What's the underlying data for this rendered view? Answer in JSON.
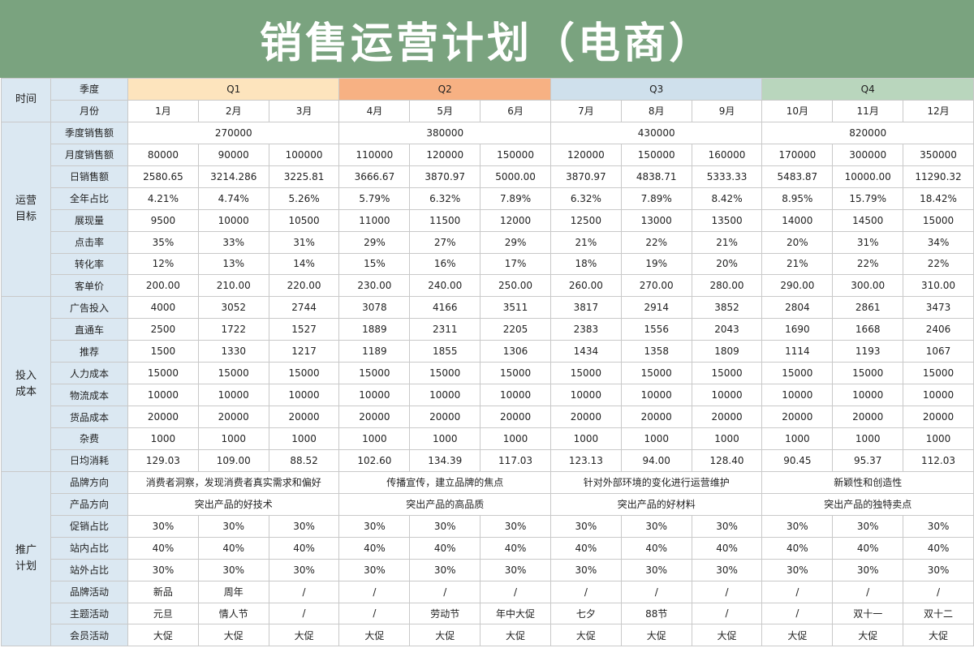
{
  "title": "销售运营计划（电商）",
  "colors": {
    "banner": "#7aa37f",
    "label_bg": "#dbe8f2",
    "q1": "#fde4bd",
    "q2": "#f7b183",
    "q3": "#cfe0ec",
    "q4": "#b9d6bd",
    "border": "#c9c9c9"
  },
  "header": {
    "time_label": "时间",
    "quarter_label": "季度",
    "month_label": "月份",
    "quarters": [
      "Q1",
      "Q2",
      "Q3",
      "Q4"
    ],
    "months": [
      "1月",
      "2月",
      "3月",
      "4月",
      "5月",
      "6月",
      "7月",
      "8月",
      "9月",
      "10月",
      "11月",
      "12月"
    ]
  },
  "sections": {
    "ops": "运营\n目标",
    "cost": "投入\n成本",
    "promo": "推广\n计划"
  },
  "quarter_sales": {
    "label": "季度销售额",
    "values": [
      "270000",
      "380000",
      "430000",
      "820000"
    ]
  },
  "ops_rows": [
    {
      "label": "月度销售额",
      "values": [
        "80000",
        "90000",
        "100000",
        "110000",
        "120000",
        "150000",
        "120000",
        "150000",
        "160000",
        "170000",
        "300000",
        "350000"
      ]
    },
    {
      "label": "日销售额",
      "values": [
        "2580.65",
        "3214.286",
        "3225.81",
        "3666.67",
        "3870.97",
        "5000.00",
        "3870.97",
        "4838.71",
        "5333.33",
        "5483.87",
        "10000.00",
        "11290.32"
      ]
    },
    {
      "label": "全年占比",
      "values": [
        "4.21%",
        "4.74%",
        "5.26%",
        "5.79%",
        "6.32%",
        "7.89%",
        "6.32%",
        "7.89%",
        "8.42%",
        "8.95%",
        "15.79%",
        "18.42%"
      ]
    },
    {
      "label": "展现量",
      "values": [
        "9500",
        "10000",
        "10500",
        "11000",
        "11500",
        "12000",
        "12500",
        "13000",
        "13500",
        "14000",
        "14500",
        "15000"
      ]
    },
    {
      "label": "点击率",
      "values": [
        "35%",
        "33%",
        "31%",
        "29%",
        "27%",
        "29%",
        "21%",
        "22%",
        "21%",
        "20%",
        "31%",
        "34%"
      ]
    },
    {
      "label": "转化率",
      "values": [
        "12%",
        "13%",
        "14%",
        "15%",
        "16%",
        "17%",
        "18%",
        "19%",
        "20%",
        "21%",
        "22%",
        "22%"
      ]
    },
    {
      "label": "客单价",
      "values": [
        "200.00",
        "210.00",
        "220.00",
        "230.00",
        "240.00",
        "250.00",
        "260.00",
        "270.00",
        "280.00",
        "290.00",
        "300.00",
        "310.00"
      ]
    }
  ],
  "cost_rows": [
    {
      "label": "广告投入",
      "values": [
        "4000",
        "3052",
        "2744",
        "3078",
        "4166",
        "3511",
        "3817",
        "2914",
        "3852",
        "2804",
        "2861",
        "3473"
      ]
    },
    {
      "label": "直通车",
      "values": [
        "2500",
        "1722",
        "1527",
        "1889",
        "2311",
        "2205",
        "2383",
        "1556",
        "2043",
        "1690",
        "1668",
        "2406"
      ]
    },
    {
      "label": "推荐",
      "values": [
        "1500",
        "1330",
        "1217",
        "1189",
        "1855",
        "1306",
        "1434",
        "1358",
        "1809",
        "1114",
        "1193",
        "1067"
      ]
    },
    {
      "label": "人力成本",
      "values": [
        "15000",
        "15000",
        "15000",
        "15000",
        "15000",
        "15000",
        "15000",
        "15000",
        "15000",
        "15000",
        "15000",
        "15000"
      ]
    },
    {
      "label": "物流成本",
      "values": [
        "10000",
        "10000",
        "10000",
        "10000",
        "10000",
        "10000",
        "10000",
        "10000",
        "10000",
        "10000",
        "10000",
        "10000"
      ]
    },
    {
      "label": "货品成本",
      "values": [
        "20000",
        "20000",
        "20000",
        "20000",
        "20000",
        "20000",
        "20000",
        "20000",
        "20000",
        "20000",
        "20000",
        "20000"
      ]
    },
    {
      "label": "杂费",
      "values": [
        "1000",
        "1000",
        "1000",
        "1000",
        "1000",
        "1000",
        "1000",
        "1000",
        "1000",
        "1000",
        "1000",
        "1000"
      ]
    },
    {
      "label": "日均消耗",
      "values": [
        "129.03",
        "109.00",
        "88.52",
        "102.60",
        "134.39",
        "117.03",
        "123.13",
        "94.00",
        "128.40",
        "90.45",
        "95.37",
        "112.03"
      ]
    }
  ],
  "promo_quarter_rows": [
    {
      "label": "品牌方向",
      "values": [
        "消费者洞察，发现消费者真实需求和偏好",
        "传播宣传，建立品牌的焦点",
        "针对外部环境的变化进行运营维护",
        "新颖性和创造性"
      ]
    },
    {
      "label": "产品方向",
      "values": [
        "突出产品的好技术",
        "突出产品的高品质",
        "突出产品的好材料",
        "突出产品的独特卖点"
      ]
    }
  ],
  "promo_rows": [
    {
      "label": "促销占比",
      "values": [
        "30%",
        "30%",
        "30%",
        "30%",
        "30%",
        "30%",
        "30%",
        "30%",
        "30%",
        "30%",
        "30%",
        "30%"
      ]
    },
    {
      "label": "站内占比",
      "values": [
        "40%",
        "40%",
        "40%",
        "40%",
        "40%",
        "40%",
        "40%",
        "40%",
        "40%",
        "40%",
        "40%",
        "40%"
      ]
    },
    {
      "label": "站外占比",
      "values": [
        "30%",
        "30%",
        "30%",
        "30%",
        "30%",
        "30%",
        "30%",
        "30%",
        "30%",
        "30%",
        "30%",
        "30%"
      ]
    },
    {
      "label": "品牌活动",
      "values": [
        "新品",
        "周年",
        "/",
        "/",
        "/",
        "/",
        "/",
        "/",
        "/",
        "/",
        "/",
        "/"
      ]
    },
    {
      "label": "主题活动",
      "values": [
        "元旦",
        "情人节",
        "/",
        "/",
        "劳动节",
        "年中大促",
        "七夕",
        "88节",
        "/",
        "/",
        "双十一",
        "双十二"
      ]
    },
    {
      "label": "会员活动",
      "values": [
        "大促",
        "大促",
        "大促",
        "大促",
        "大促",
        "大促",
        "大促",
        "大促",
        "大促",
        "大促",
        "大促",
        "大促"
      ]
    }
  ]
}
